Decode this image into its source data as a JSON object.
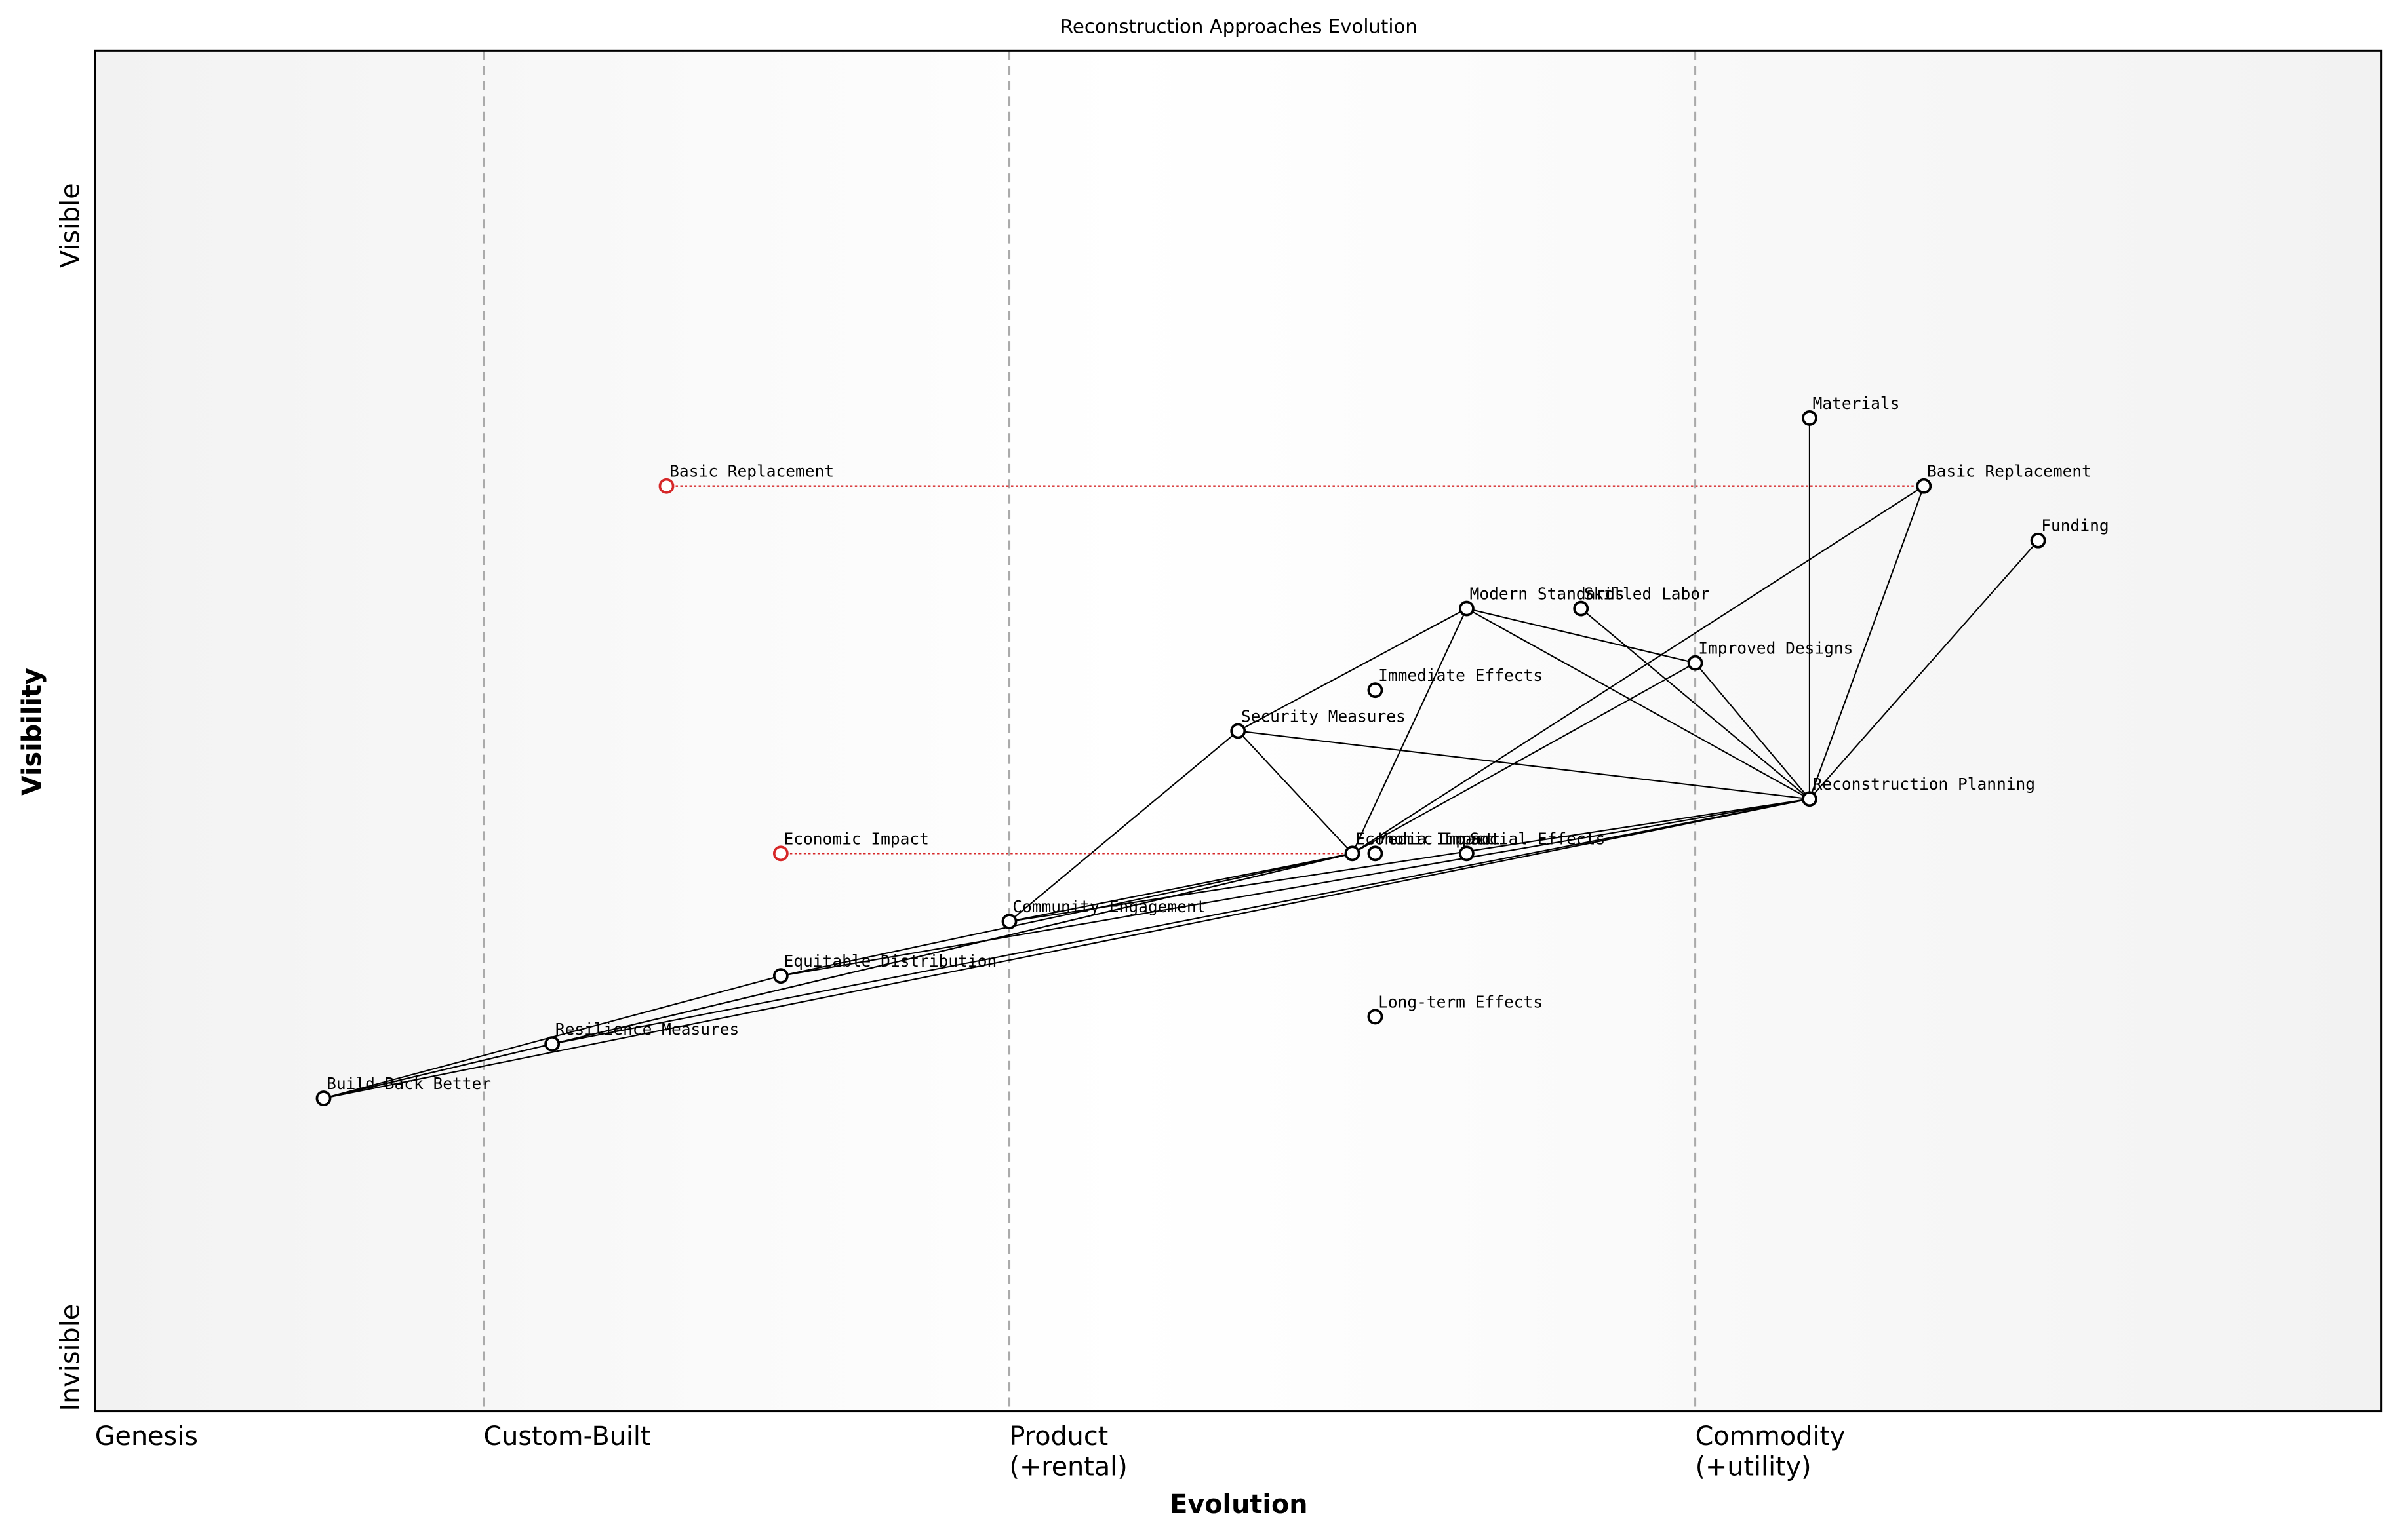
{
  "chart_data": {
    "type": "wardley",
    "title": "Reconstruction Approaches Evolution",
    "xlabel": "Evolution",
    "ylabel": "Visibility",
    "y_top_label": "Visible",
    "y_bottom_label": "Invisible",
    "xlim": [
      0,
      1
    ],
    "ylim": [
      0,
      1
    ],
    "xticks": [
      {
        "value": 0,
        "label": "Genesis"
      },
      {
        "value": 0.17,
        "label": "Custom-Built"
      },
      {
        "value": 0.4,
        "label": "Product\n(+rental)"
      },
      {
        "value": 0.7,
        "label": "Commodity\n(+utility)"
      }
    ],
    "nodes": [
      {
        "name": "Reconstruction Planning",
        "x": 0.75,
        "y": 0.45
      },
      {
        "name": "Materials",
        "x": 0.75,
        "y": 0.73
      },
      {
        "name": "Basic Replacement",
        "x": 0.8,
        "y": 0.68
      },
      {
        "name": "Funding",
        "x": 0.85,
        "y": 0.64
      },
      {
        "name": "Modern Standards",
        "x": 0.6,
        "y": 0.59
      },
      {
        "name": "Skilled Labor",
        "x": 0.65,
        "y": 0.59
      },
      {
        "name": "Improved Designs",
        "x": 0.7,
        "y": 0.55
      },
      {
        "name": "Immediate Effects",
        "x": 0.56,
        "y": 0.53
      },
      {
        "name": "Security Measures",
        "x": 0.5,
        "y": 0.5
      },
      {
        "name": "Economic Impact",
        "x": 0.55,
        "y": 0.41
      },
      {
        "name": "Media Impact",
        "x": 0.56,
        "y": 0.41
      },
      {
        "name": "Social Effects",
        "x": 0.6,
        "y": 0.41
      },
      {
        "name": "Community Engagement",
        "x": 0.4,
        "y": 0.36
      },
      {
        "name": "Equitable Distribution",
        "x": 0.3,
        "y": 0.32
      },
      {
        "name": "Resilience Measures",
        "x": 0.2,
        "y": 0.27
      },
      {
        "name": "Build Back Better",
        "x": 0.1,
        "y": 0.23
      },
      {
        "name": "Long-term Effects",
        "x": 0.56,
        "y": 0.29
      }
    ],
    "edges": [
      [
        0,
        1
      ],
      [
        0,
        2
      ],
      [
        0,
        3
      ],
      [
        0,
        4
      ],
      [
        0,
        5
      ],
      [
        0,
        6
      ],
      [
        0,
        8
      ],
      [
        0,
        12
      ],
      [
        0,
        13
      ],
      [
        0,
        14
      ],
      [
        0,
        15
      ],
      [
        4,
        8
      ],
      [
        4,
        6
      ],
      [
        4,
        9
      ],
      [
        2,
        9
      ],
      [
        6,
        9
      ],
      [
        8,
        12
      ],
      [
        8,
        9
      ],
      [
        9,
        12
      ],
      [
        9,
        13
      ],
      [
        9,
        14
      ],
      [
        9,
        15
      ],
      [
        14,
        15
      ],
      [
        13,
        15
      ]
    ],
    "evolved": [
      {
        "name": "Basic Replacement",
        "x": 0.25,
        "y": 0.68,
        "to": 2
      },
      {
        "name": "Economic Impact",
        "x": 0.3,
        "y": 0.41,
        "to": 9
      }
    ]
  }
}
